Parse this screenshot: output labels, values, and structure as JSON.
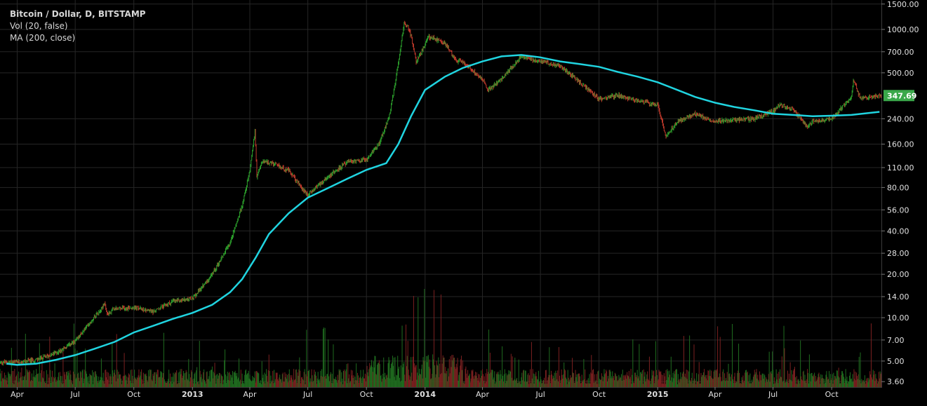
{
  "legend": {
    "symbol": "Bitcoin / Dollar, D, BITSTAMP",
    "volume": "Vol (20, false)",
    "ma": "MA (200, close)"
  },
  "last_price_label": "347.69",
  "colors": {
    "background": "#000000",
    "grid": "#262626",
    "up": "#2ca02c",
    "down": "#c0392b",
    "ma_line": "#20d4e0",
    "axis_text": "#e0e0e0",
    "price_badge": "#3aa84a"
  },
  "chart_data": {
    "type": "candlestick",
    "yscale": "log",
    "ylim": [
      3.3,
      1600
    ],
    "ytick_labels": [
      "1500.00",
      "1000.00",
      "700.00",
      "500.00",
      "240.00",
      "160.00",
      "110.00",
      "80.00",
      "56.00",
      "40.00",
      "28.00",
      "20.00",
      "14.00",
      "10.00",
      "7.00",
      "5.00",
      "3.60"
    ],
    "ytick_values": [
      1500,
      1000,
      700,
      500,
      240,
      160,
      110,
      80,
      56,
      40,
      28,
      20,
      14,
      10,
      7,
      5,
      3.6
    ],
    "xtick_labels": [
      "Apr",
      "Jul",
      "Oct",
      "2013",
      "Apr",
      "Jul",
      "Oct",
      "2014",
      "Apr",
      "Jul",
      "Oct",
      "2015",
      "Apr",
      "Jul",
      "Oct"
    ],
    "xtick_dates": [
      "2012-04-01",
      "2012-07-01",
      "2012-10-01",
      "2013-01-01",
      "2013-04-01",
      "2013-07-01",
      "2013-10-01",
      "2014-01-01",
      "2014-04-01",
      "2014-07-01",
      "2014-10-01",
      "2015-01-01",
      "2015-04-01",
      "2015-07-01",
      "2015-10-01"
    ],
    "xlim": [
      "2012-03-05",
      "2015-12-18"
    ],
    "price_series": {
      "name": "Bitcoin / Dollar",
      "dates": [
        "2012-03-05",
        "2012-04-01",
        "2012-05-01",
        "2012-06-01",
        "2012-07-01",
        "2012-07-20",
        "2012-08-10",
        "2012-08-17",
        "2012-08-20",
        "2012-09-01",
        "2012-10-01",
        "2012-11-01",
        "2012-12-01",
        "2013-01-01",
        "2013-02-01",
        "2013-03-01",
        "2013-03-20",
        "2013-04-01",
        "2013-04-09",
        "2013-04-12",
        "2013-04-20",
        "2013-05-01",
        "2013-06-01",
        "2013-07-01",
        "2013-07-06",
        "2013-08-01",
        "2013-09-01",
        "2013-10-01",
        "2013-10-20",
        "2013-11-05",
        "2013-11-15",
        "2013-11-29",
        "2013-12-05",
        "2013-12-10",
        "2013-12-18",
        "2014-01-01",
        "2014-01-05",
        "2014-02-01",
        "2014-02-20",
        "2014-03-01",
        "2014-04-01",
        "2014-04-10",
        "2014-05-01",
        "2014-06-01",
        "2014-07-01",
        "2014-08-01",
        "2014-09-01",
        "2014-10-01",
        "2014-11-01",
        "2014-12-01",
        "2015-01-01",
        "2015-01-14",
        "2015-02-01",
        "2015-03-01",
        "2015-04-01",
        "2015-05-01",
        "2015-06-01",
        "2015-07-01",
        "2015-07-12",
        "2015-08-01",
        "2015-08-24",
        "2015-09-01",
        "2015-10-01",
        "2015-11-01",
        "2015-11-04",
        "2015-11-15",
        "2015-12-01",
        "2015-12-15"
      ],
      "close": [
        4.9,
        4.9,
        5.1,
        5.7,
        6.8,
        8.8,
        11.5,
        12.5,
        10.5,
        11.5,
        11.8,
        11.0,
        13.0,
        13.5,
        20.0,
        33.0,
        60.0,
        105,
        200,
        95,
        120,
        120,
        105,
        70,
        75,
        95,
        120,
        125,
        160,
        240,
        420,
        1100,
        1050,
        900,
        600,
        780,
        900,
        800,
        600,
        600,
        450,
        380,
        450,
        650,
        600,
        560,
        430,
        330,
        350,
        320,
        300,
        180,
        230,
        260,
        230,
        235,
        240,
        270,
        300,
        280,
        210,
        230,
        240,
        340,
        450,
        330,
        340,
        347.69
      ]
    },
    "ma_series": {
      "name": "MA (200, close)",
      "dates": [
        "2012-03-15",
        "2012-04-01",
        "2012-05-01",
        "2012-06-01",
        "2012-07-01",
        "2012-08-01",
        "2012-09-01",
        "2012-10-01",
        "2012-11-01",
        "2012-12-01",
        "2013-01-01",
        "2013-02-01",
        "2013-03-01",
        "2013-03-20",
        "2013-04-10",
        "2013-05-01",
        "2013-06-01",
        "2013-07-01",
        "2013-08-01",
        "2013-09-01",
        "2013-10-01",
        "2013-11-01",
        "2013-11-20",
        "2013-12-10",
        "2014-01-01",
        "2014-02-01",
        "2014-03-01",
        "2014-04-01",
        "2014-05-01",
        "2014-06-01",
        "2014-07-01",
        "2014-08-01",
        "2014-09-01",
        "2014-10-01",
        "2014-11-01",
        "2014-12-01",
        "2015-01-01",
        "2015-02-01",
        "2015-03-01",
        "2015-04-01",
        "2015-05-01",
        "2015-06-01",
        "2015-07-01",
        "2015-08-01",
        "2015-09-01",
        "2015-10-01",
        "2015-11-01",
        "2015-12-15"
      ],
      "values": [
        4.8,
        4.7,
        4.8,
        5.1,
        5.5,
        6.1,
        6.8,
        7.9,
        8.8,
        9.8,
        10.8,
        12.3,
        15.0,
        18.5,
        26.0,
        38.0,
        53.0,
        68.0,
        79.0,
        92.0,
        106,
        118,
        160,
        250,
        380,
        470,
        540,
        600,
        650,
        665,
        640,
        600,
        575,
        550,
        505,
        470,
        430,
        380,
        340,
        310,
        290,
        275,
        260,
        255,
        250,
        252,
        255,
        268
      ]
    },
    "volume_series": {
      "name": "Vol (20, false)",
      "ylim": [
        0,
        100
      ]
    },
    "last_value": 347.69
  }
}
